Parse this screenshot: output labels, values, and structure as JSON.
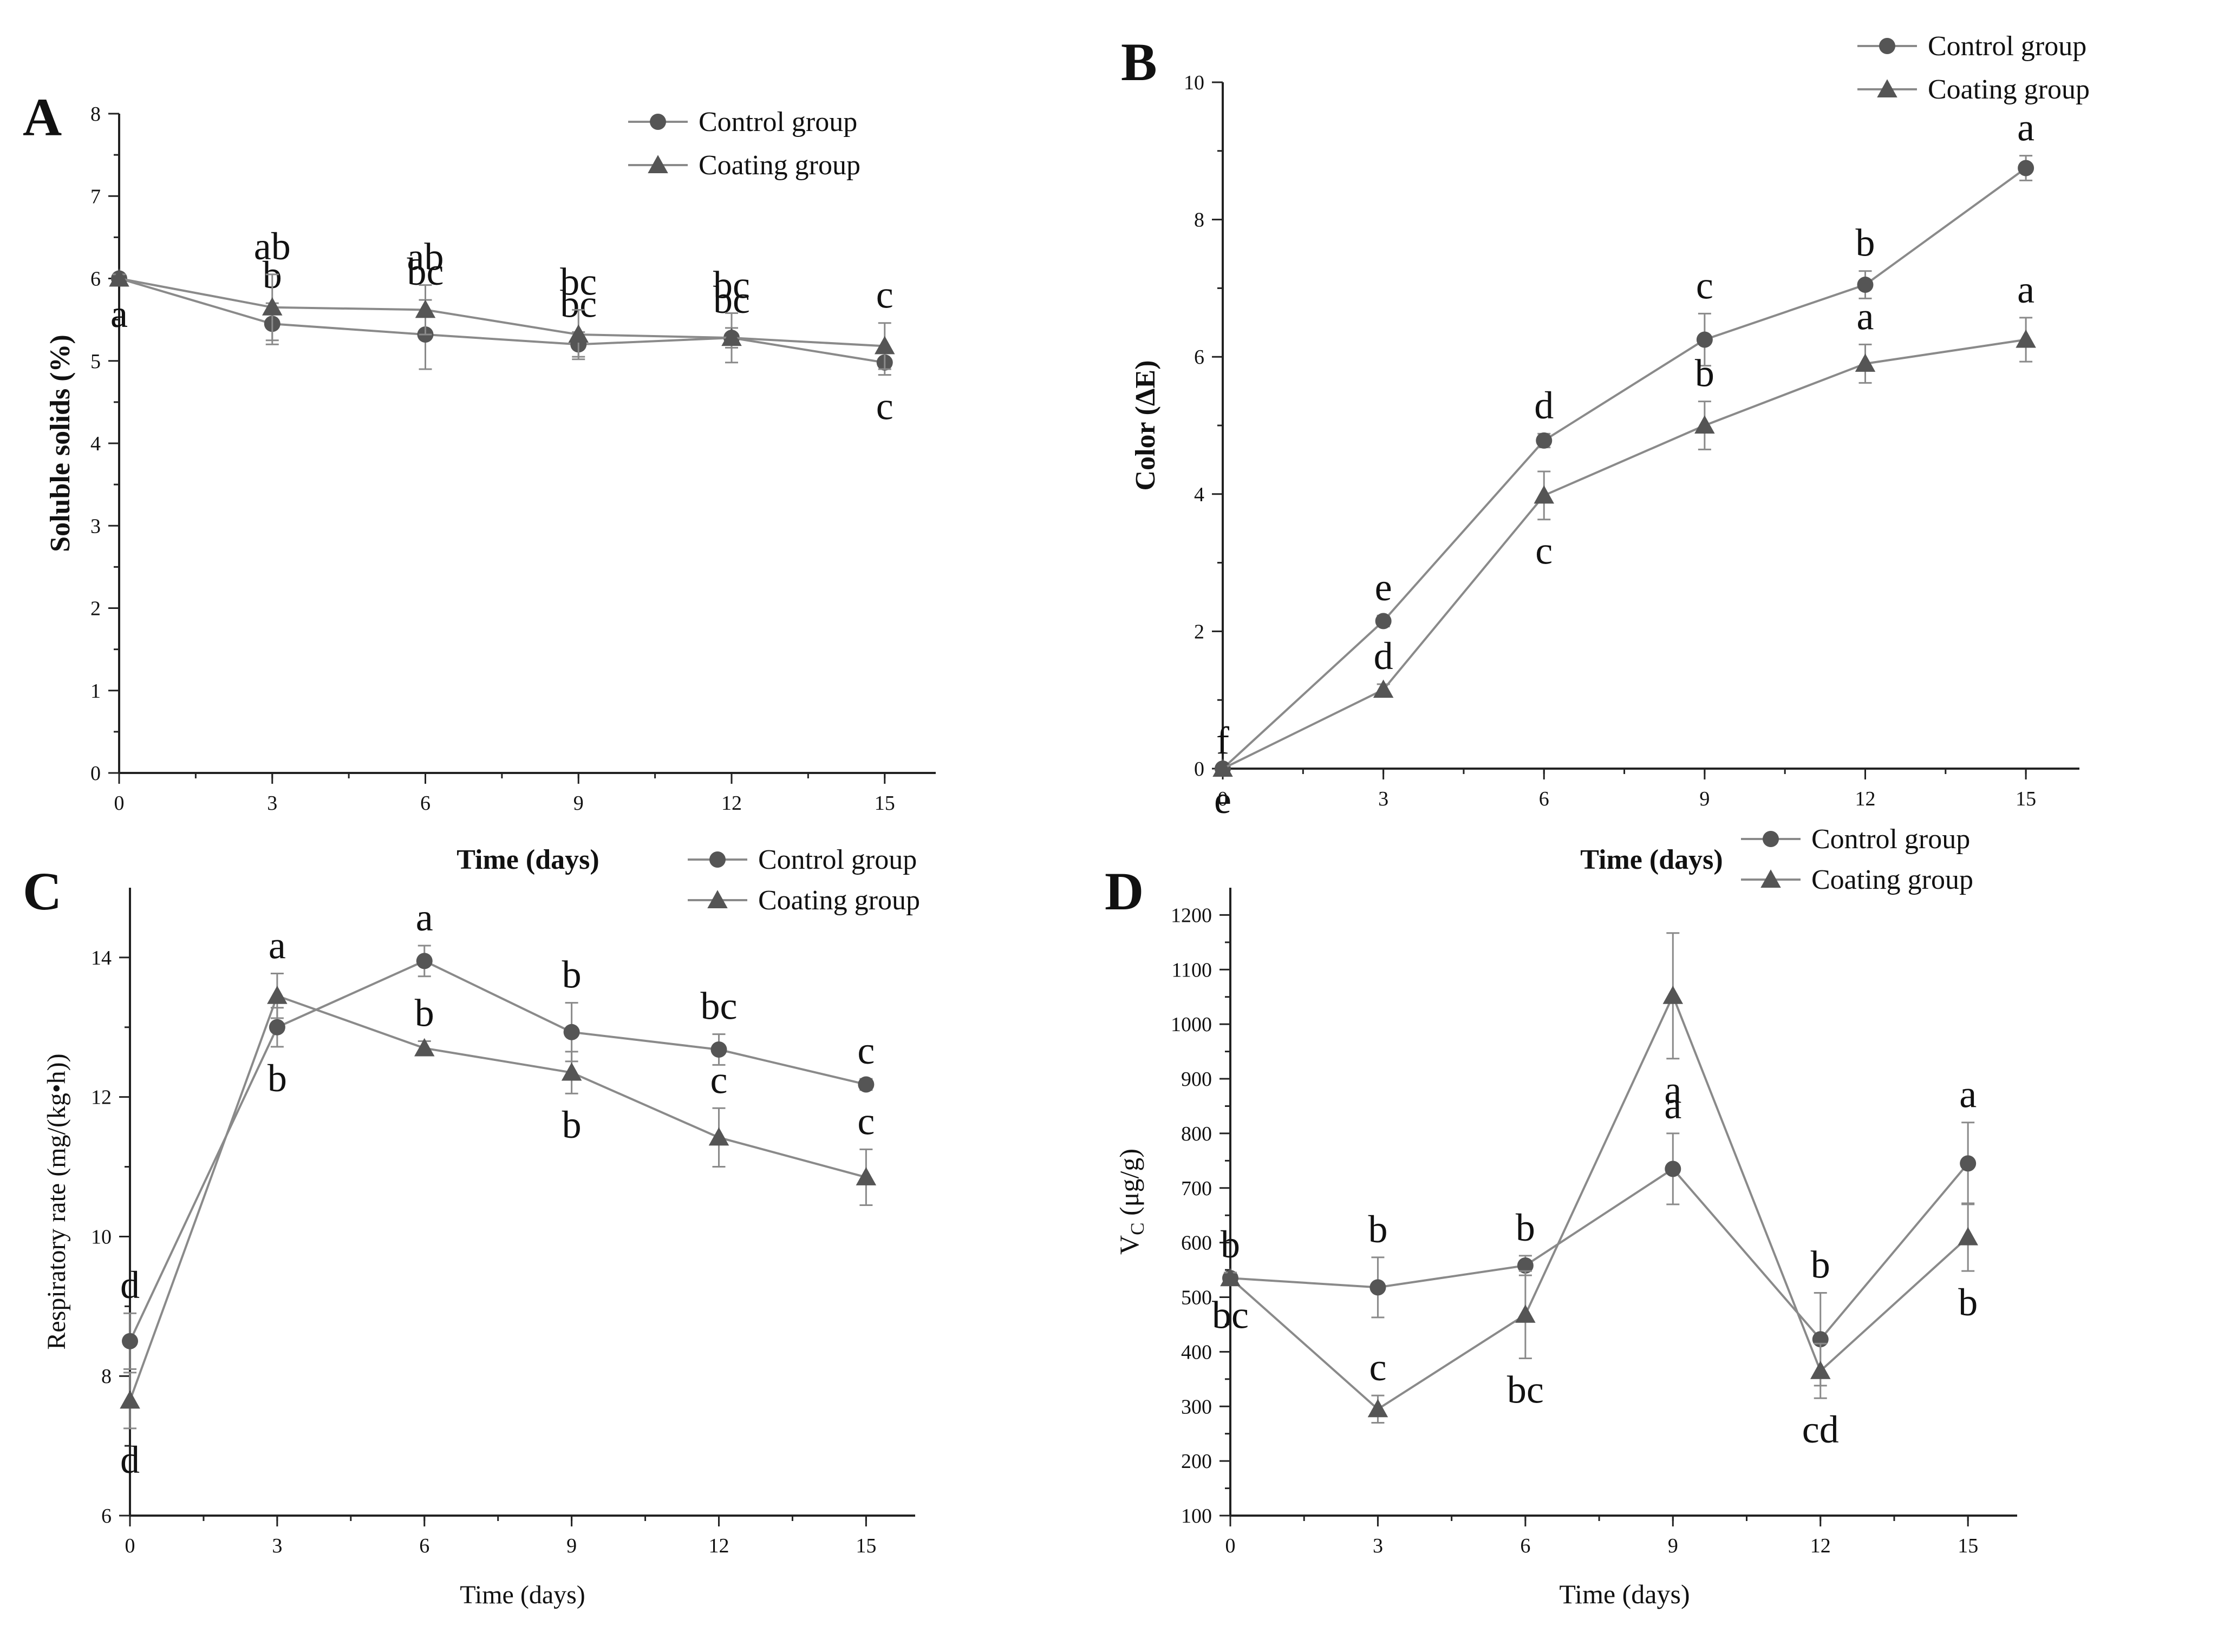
{
  "figure": {
    "series_names": [
      "Control group",
      "Coating group"
    ],
    "colors": {
      "line": "#8a8a8a",
      "marker": "#555555",
      "axis": "#222222",
      "text": "#111111"
    }
  },
  "chart_data": [
    {
      "panel": "A",
      "type": "line",
      "xlabel": "Time (days)",
      "ylabel": "Soluble solids (%)",
      "x": [
        0,
        3,
        6,
        9,
        12,
        15
      ],
      "xticks": [
        0,
        3,
        6,
        9,
        12,
        15
      ],
      "xlim": [
        0,
        16
      ],
      "ylim": [
        0,
        8
      ],
      "yticks": [
        0,
        1,
        2,
        3,
        4,
        5,
        6,
        7,
        8
      ],
      "legend": "top-right",
      "series": [
        {
          "name": "Control group",
          "marker": "circle",
          "values": [
            6.0,
            5.45,
            5.32,
            5.2,
            5.28,
            4.98
          ],
          "errors": [
            0.05,
            0.25,
            0.42,
            0.15,
            0.12,
            0.15
          ],
          "letters": [
            "a",
            "b",
            "bc",
            "bc",
            "bc",
            "c"
          ]
        },
        {
          "name": "Coating group",
          "marker": "triangle",
          "values": [
            6.0,
            5.65,
            5.62,
            5.32,
            5.28,
            5.18
          ],
          "errors": [
            0.05,
            0.4,
            0.3,
            0.3,
            0.3,
            0.28
          ],
          "letters": [
            "a",
            "ab",
            "ab",
            "bc",
            "bc",
            "c"
          ]
        }
      ]
    },
    {
      "panel": "B",
      "type": "line",
      "xlabel": "Time (days)",
      "ylabel": "Color (ΔE)",
      "x": [
        0,
        3,
        6,
        9,
        12,
        15
      ],
      "xticks": [
        0,
        3,
        6,
        9,
        12,
        15
      ],
      "xlim": [
        0,
        16
      ],
      "ylim": [
        0,
        10
      ],
      "yticks": [
        0,
        2,
        4,
        6,
        8,
        10
      ],
      "legend": "top-right",
      "series": [
        {
          "name": "Control group",
          "marker": "circle",
          "values": [
            0,
            2.15,
            4.78,
            6.25,
            7.05,
            8.75
          ],
          "errors": [
            0,
            0.08,
            0.1,
            0.38,
            0.2,
            0.18
          ],
          "letters": [
            "f",
            "e",
            "d",
            "c",
            "b",
            "a"
          ]
        },
        {
          "name": "Coating group",
          "marker": "triangle",
          "values": [
            0,
            1.15,
            3.98,
            5.0,
            5.9,
            6.25
          ],
          "errors": [
            0,
            0.08,
            0.35,
            0.35,
            0.28,
            0.32
          ],
          "letters": [
            "e",
            "d",
            "c",
            "b",
            "a",
            "a"
          ]
        }
      ]
    },
    {
      "panel": "C",
      "type": "line",
      "xlabel": "Time (days)",
      "ylabel": "Respiratory rate (mg/(kg•h))",
      "x": [
        0,
        3,
        6,
        9,
        12,
        15
      ],
      "xticks": [
        0,
        3,
        6,
        9,
        12,
        15
      ],
      "xlim": [
        0,
        16
      ],
      "ylim": [
        6,
        15
      ],
      "yticks": [
        6,
        8,
        10,
        12,
        14
      ],
      "legend": "top-right",
      "series": [
        {
          "name": "Control group",
          "marker": "circle",
          "values": [
            8.5,
            13.0,
            13.95,
            12.93,
            12.68,
            12.18
          ],
          "errors": [
            0.4,
            0.28,
            0.22,
            0.42,
            0.22,
            0.08
          ],
          "letters": [
            "d",
            "b",
            "a",
            "b",
            "bc",
            "c"
          ]
        },
        {
          "name": "Coating group",
          "marker": "triangle",
          "values": [
            7.65,
            13.45,
            12.7,
            12.35,
            11.42,
            10.85
          ],
          "errors": [
            0.4,
            0.32,
            0.1,
            0.3,
            0.42,
            0.4
          ],
          "letters": [
            "d",
            "a",
            "b",
            "b",
            "c",
            "c"
          ]
        }
      ]
    },
    {
      "panel": "D",
      "type": "line",
      "xlabel": "Time (days)",
      "ylabel": "V",
      "ylabel_sub": "C",
      "ylabel_unit": " (μg/g)",
      "x": [
        0,
        3,
        6,
        9,
        12,
        15
      ],
      "xticks": [
        0,
        3,
        6,
        9,
        12,
        15
      ],
      "xlim": [
        0,
        16
      ],
      "ylim": [
        100,
        1250
      ],
      "yticks": [
        100,
        200,
        300,
        400,
        500,
        600,
        700,
        800,
        900,
        1000,
        1100,
        1200
      ],
      "legend": "top-right",
      "series": [
        {
          "name": "Control group",
          "marker": "circle",
          "values": [
            535,
            518,
            558,
            735,
            423,
            745
          ],
          "errors": [
            10,
            55,
            18,
            65,
            85,
            75
          ],
          "letters": [
            "b",
            "b",
            "b",
            "a",
            "b",
            "a"
          ]
        },
        {
          "name": "Coating group",
          "marker": "triangle",
          "values": [
            535,
            295,
            468,
            1052,
            365,
            610
          ],
          "errors": [
            10,
            25,
            80,
            115,
            50,
            62
          ],
          "letters": [
            "bc",
            "c",
            "bc",
            "a",
            "cd",
            "b"
          ]
        }
      ]
    }
  ]
}
